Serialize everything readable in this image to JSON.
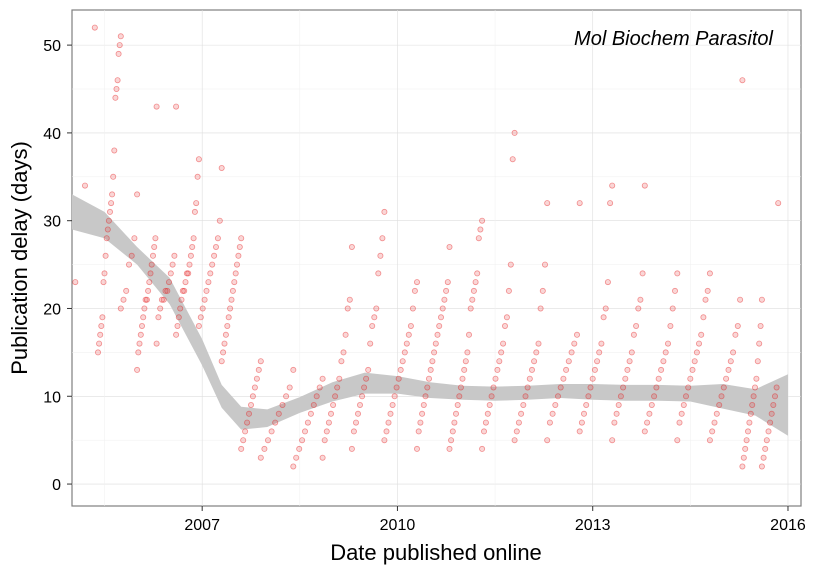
{
  "chart_data": {
    "type": "scatter",
    "title": "",
    "annotation": "Mol Biochem Parasitol",
    "xlabel": "Date published online",
    "ylabel": "Publication delay (days)",
    "xlim": [
      2005.0,
      2016.2
    ],
    "ylim": [
      -2.5,
      54
    ],
    "x_ticks": [
      2007,
      2010,
      2013,
      2016
    ],
    "y_ticks": [
      0,
      10,
      20,
      30,
      40,
      50
    ],
    "grid": true,
    "legend": "none",
    "point_color": "#e41a1c",
    "smooth_band_color": "#c8c8c8",
    "point_groups": [
      {
        "x_from": 2005.05,
        "x_to": 2005.35,
        "values": [
          23,
          34,
          52
        ]
      },
      {
        "x_from": 2005.4,
        "x_to": 2005.75,
        "values": [
          15,
          16,
          17,
          18,
          19,
          23,
          24,
          26,
          28,
          29,
          30,
          31,
          32,
          33,
          35,
          38,
          44,
          45,
          46,
          49,
          50,
          51
        ]
      },
      {
        "x_from": 2005.75,
        "x_to": 2006.0,
        "values": [
          20,
          21,
          22,
          25,
          26,
          28,
          33
        ]
      },
      {
        "x_from": 2006.0,
        "x_to": 2006.3,
        "values": [
          13,
          15,
          16,
          17,
          18,
          19,
          20,
          21,
          21,
          22,
          23,
          24,
          25,
          26,
          27,
          28,
          43
        ]
      },
      {
        "x_from": 2006.3,
        "x_to": 2006.6,
        "values": [
          16,
          19,
          20,
          21,
          21,
          22,
          22,
          23,
          24,
          25,
          26,
          43
        ]
      },
      {
        "x_from": 2006.6,
        "x_to": 2006.95,
        "values": [
          17,
          18,
          19,
          20,
          21,
          22,
          22,
          23,
          24,
          24,
          25,
          26,
          27,
          28,
          31,
          32,
          35,
          37
        ]
      },
      {
        "x_from": 2006.95,
        "x_to": 2007.3,
        "values": [
          18,
          19,
          20,
          21,
          22,
          23,
          24,
          25,
          26,
          27,
          28,
          30,
          36
        ]
      },
      {
        "x_from": 2007.3,
        "x_to": 2007.6,
        "values": [
          14,
          15,
          16,
          17,
          18,
          19,
          20,
          21,
          22,
          23,
          24,
          25,
          26,
          27,
          28
        ]
      },
      {
        "x_from": 2007.6,
        "x_to": 2007.9,
        "values": [
          4,
          5,
          6,
          7,
          8,
          9,
          10,
          11,
          12,
          13,
          14
        ]
      },
      {
        "x_from": 2007.9,
        "x_to": 2008.4,
        "values": [
          3,
          4,
          5,
          6,
          7,
          8,
          9,
          10,
          11,
          13
        ]
      },
      {
        "x_from": 2008.4,
        "x_to": 2008.85,
        "values": [
          2,
          3,
          4,
          5,
          6,
          7,
          8,
          9,
          10,
          11,
          12
        ]
      },
      {
        "x_from": 2008.85,
        "x_to": 2009.3,
        "values": [
          3,
          5,
          6,
          7,
          8,
          9,
          10,
          11,
          12,
          14,
          15,
          17,
          20,
          21,
          27
        ]
      },
      {
        "x_from": 2009.3,
        "x_to": 2009.8,
        "values": [
          4,
          6,
          7,
          8,
          9,
          10,
          11,
          12,
          13,
          16,
          18,
          19,
          20,
          24,
          26,
          28,
          31
        ]
      },
      {
        "x_from": 2009.8,
        "x_to": 2010.3,
        "values": [
          5,
          6,
          7,
          8,
          9,
          10,
          11,
          12,
          13,
          14,
          15,
          16,
          17,
          18,
          20,
          22,
          23
        ]
      },
      {
        "x_from": 2010.3,
        "x_to": 2010.8,
        "values": [
          4,
          6,
          7,
          8,
          9,
          10,
          11,
          12,
          13,
          14,
          15,
          16,
          17,
          18,
          19,
          20,
          21,
          22,
          23,
          27
        ]
      },
      {
        "x_from": 2010.8,
        "x_to": 2011.3,
        "values": [
          4,
          5,
          6,
          7,
          8,
          9,
          10,
          11,
          12,
          13,
          14,
          15,
          17,
          20,
          21,
          22,
          23,
          24,
          28,
          29,
          30
        ]
      },
      {
        "x_from": 2011.3,
        "x_to": 2011.8,
        "values": [
          4,
          6,
          7,
          8,
          9,
          10,
          11,
          12,
          13,
          14,
          15,
          16,
          18,
          19,
          22,
          25,
          37,
          40
        ]
      },
      {
        "x_from": 2011.8,
        "x_to": 2012.3,
        "values": [
          5,
          6,
          7,
          8,
          9,
          10,
          11,
          12,
          13,
          14,
          15,
          16,
          20,
          22,
          25,
          32
        ]
      },
      {
        "x_from": 2012.3,
        "x_to": 2012.8,
        "values": [
          5,
          7,
          8,
          9,
          10,
          11,
          12,
          13,
          14,
          15,
          16,
          17,
          32
        ]
      },
      {
        "x_from": 2012.8,
        "x_to": 2013.3,
        "values": [
          6,
          7,
          8,
          9,
          10,
          11,
          12,
          13,
          14,
          15,
          16,
          19,
          20,
          23,
          32,
          34
        ]
      },
      {
        "x_from": 2013.3,
        "x_to": 2013.8,
        "values": [
          5,
          7,
          8,
          9,
          10,
          11,
          12,
          13,
          14,
          15,
          17,
          18,
          20,
          21,
          24,
          34
        ]
      },
      {
        "x_from": 2013.8,
        "x_to": 2014.3,
        "values": [
          6,
          7,
          8,
          9,
          10,
          11,
          12,
          13,
          14,
          15,
          16,
          18,
          20,
          22,
          24
        ]
      },
      {
        "x_from": 2014.3,
        "x_to": 2014.8,
        "values": [
          5,
          7,
          8,
          9,
          10,
          11,
          12,
          13,
          14,
          15,
          16,
          17,
          19,
          21,
          22,
          24
        ]
      },
      {
        "x_from": 2014.8,
        "x_to": 2015.3,
        "values": [
          5,
          6,
          7,
          8,
          9,
          10,
          11,
          12,
          13,
          14,
          15,
          17,
          18,
          21,
          46
        ]
      },
      {
        "x_from": 2015.3,
        "x_to": 2015.6,
        "values": [
          2,
          3,
          4,
          5,
          6,
          7,
          8,
          9,
          10,
          11,
          12,
          14,
          16,
          18,
          21
        ]
      },
      {
        "x_from": 2015.6,
        "x_to": 2015.85,
        "values": [
          2,
          3,
          4,
          5,
          6,
          7,
          8,
          9,
          10,
          11,
          32
        ]
      }
    ],
    "smooth_line": {
      "x": [
        2005.0,
        2005.5,
        2006.0,
        2006.5,
        2007.0,
        2007.3,
        2007.6,
        2008.0,
        2008.5,
        2009.0,
        2009.5,
        2010.0,
        2010.5,
        2011.0,
        2011.5,
        2012.0,
        2012.5,
        2013.0,
        2013.5,
        2014.0,
        2014.5,
        2015.0,
        2015.5,
        2016.0
      ],
      "y": [
        31.0,
        29.5,
        26.0,
        22.0,
        15.0,
        10.0,
        7.5,
        7.5,
        9.0,
        10.5,
        11.5,
        11.3,
        10.7,
        10.4,
        10.3,
        10.4,
        10.6,
        10.5,
        10.4,
        10.4,
        10.3,
        10.0,
        9.3,
        9.0
      ],
      "lower": [
        29.0,
        28.0,
        25.0,
        20.5,
        13.5,
        8.7,
        6.2,
        6.5,
        8.1,
        9.4,
        10.3,
        10.3,
        9.8,
        9.6,
        9.5,
        9.6,
        9.8,
        9.6,
        9.5,
        9.5,
        9.4,
        8.6,
        7.8,
        5.5
      ],
      "upper": [
        33.0,
        31.0,
        27.0,
        23.5,
        16.5,
        11.3,
        8.8,
        8.5,
        9.9,
        11.6,
        12.7,
        12.3,
        11.6,
        11.2,
        11.1,
        11.2,
        11.4,
        11.4,
        11.3,
        11.3,
        11.2,
        11.4,
        10.8,
        12.5
      ]
    }
  }
}
